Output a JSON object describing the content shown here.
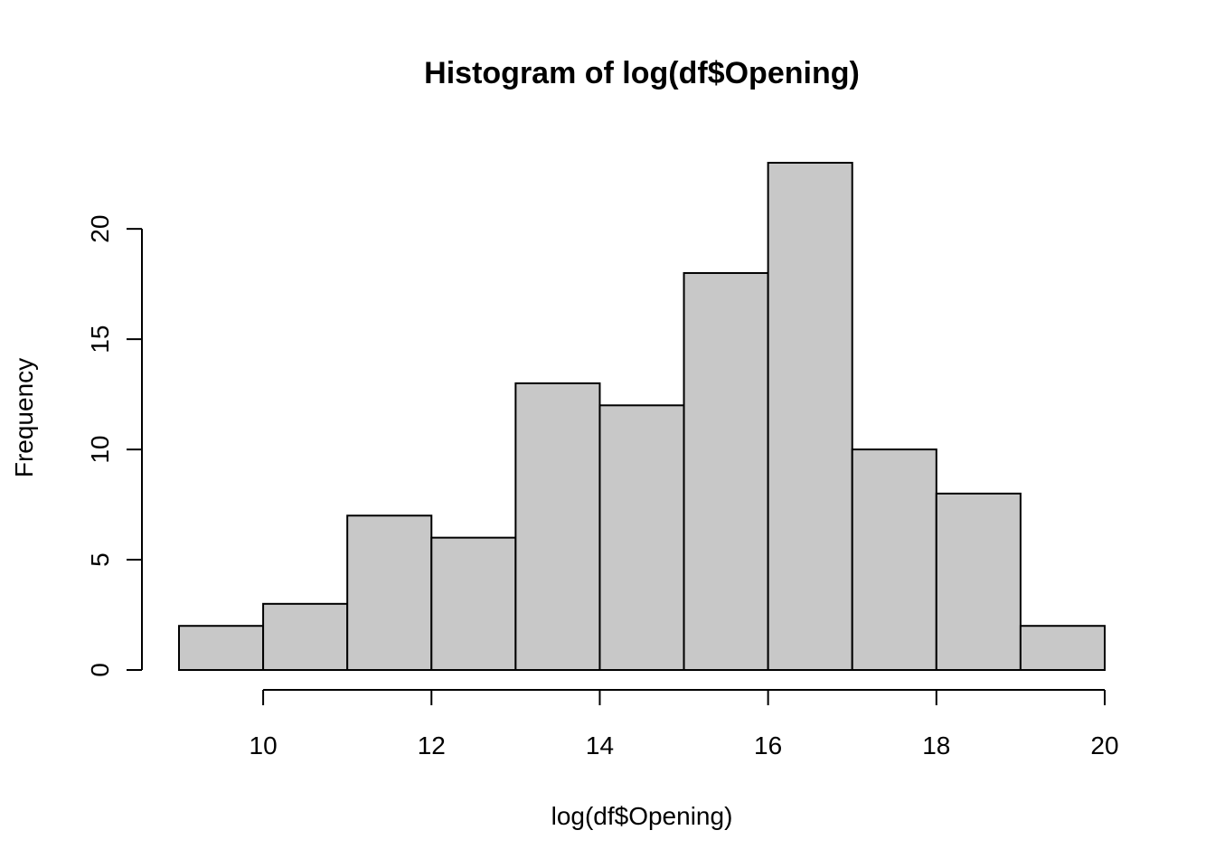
{
  "chart_data": {
    "type": "bar",
    "title": "Histogram of log(df$Opening)",
    "xlabel": "log(df$Opening)",
    "ylabel": "Frequency",
    "bins": [
      {
        "start": 9,
        "end": 10,
        "count": 2
      },
      {
        "start": 10,
        "end": 11,
        "count": 3
      },
      {
        "start": 11,
        "end": 12,
        "count": 7
      },
      {
        "start": 12,
        "end": 13,
        "count": 6
      },
      {
        "start": 13,
        "end": 14,
        "count": 13
      },
      {
        "start": 14,
        "end": 15,
        "count": 12
      },
      {
        "start": 15,
        "end": 16,
        "count": 18
      },
      {
        "start": 16,
        "end": 17,
        "count": 23
      },
      {
        "start": 17,
        "end": 18,
        "count": 10
      },
      {
        "start": 18,
        "end": 19,
        "count": 8
      },
      {
        "start": 19,
        "end": 20,
        "count": 2
      }
    ],
    "xticks": [
      10,
      12,
      14,
      16,
      18,
      20
    ],
    "yticks": [
      0,
      5,
      10,
      15,
      20
    ],
    "xlim": [
      9,
      20
    ],
    "xaxis_range": [
      10,
      20
    ],
    "ylim": [
      0,
      23
    ],
    "yaxis_range": [
      0,
      20
    ],
    "bar_color": "#c8c8c8",
    "edge_color": "#000000",
    "grid": false
  }
}
